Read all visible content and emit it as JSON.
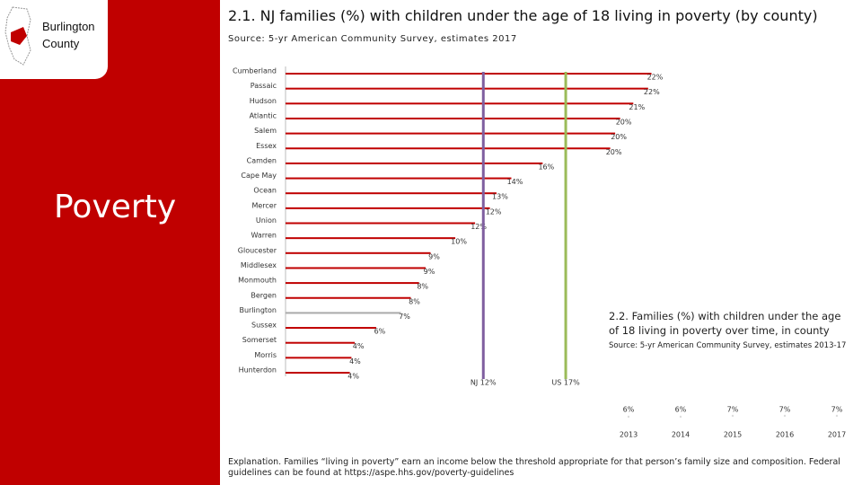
{
  "panel": {
    "badge": "Burlington County",
    "heading": "Poverty"
  },
  "chart_data": [
    {
      "type": "bar",
      "orientation": "horizontal",
      "title": "2.1. NJ families (%) with children under the age of 18 living in poverty (by county)",
      "subtitle": "Source: 5-yr American Community Survey, estimates 2017",
      "categories": [
        "Cumberland",
        "Passaic",
        "Hudson",
        "Atlantic",
        "Salem",
        "Essex",
        "Camden",
        "Cape May",
        "Ocean",
        "Mercer",
        "Union",
        "Warren",
        "Gloucester",
        "Middlesex",
        "Monmouth",
        "Bergen",
        "Burlington",
        "Sussex",
        "Somerset",
        "Morris",
        "Hunterdon"
      ],
      "values": [
        22.2,
        22.0,
        21.1,
        20.3,
        20.0,
        19.7,
        15.6,
        13.7,
        12.8,
        12.4,
        11.5,
        10.3,
        8.8,
        8.5,
        8.1,
        7.6,
        7.0,
        5.5,
        4.2,
        4.0,
        3.9
      ],
      "value_labels": [
        "22%",
        "22%",
        "21%",
        "20%",
        "20%",
        "20%",
        "16%",
        "14%",
        "13%",
        "12%",
        "12%",
        "10%",
        "9%",
        "9%",
        "8%",
        "8%",
        "7%",
        "6%",
        "4%",
        "4%",
        "4%"
      ],
      "color": "#c00000",
      "highlight": {
        "category": "Burlington",
        "color": "#aaaaaa"
      },
      "xlim": [
        0,
        22.5
      ],
      "reference_lines": [
        {
          "label": "NJ 12%",
          "value": 12,
          "color": "#7f5f9f"
        },
        {
          "label": "US 17%",
          "value": 17,
          "color": "#9bbb59"
        }
      ]
    },
    {
      "type": "line",
      "title": "2.2. Families (%) with children under the age of 18 living in poverty over time, in county",
      "subtitle": "Source: 5-yr American Community Survey, estimates 2013-17",
      "categories": [
        "2013",
        "2014",
        "2015",
        "2016",
        "2017"
      ],
      "values": [
        6,
        6,
        7,
        7,
        7
      ],
      "value_labels": [
        "6%",
        "6%",
        "7%",
        "7%",
        "7%"
      ],
      "ylim": [
        0,
        30
      ],
      "color": "#dddddd"
    }
  ],
  "explanation": "Explanation. Families “living in poverty” earn an income below the threshold appropriate for that person’s family size and composition. Federal guidelines can be found at https://aspe.hhs.gov/poverty-guidelines"
}
